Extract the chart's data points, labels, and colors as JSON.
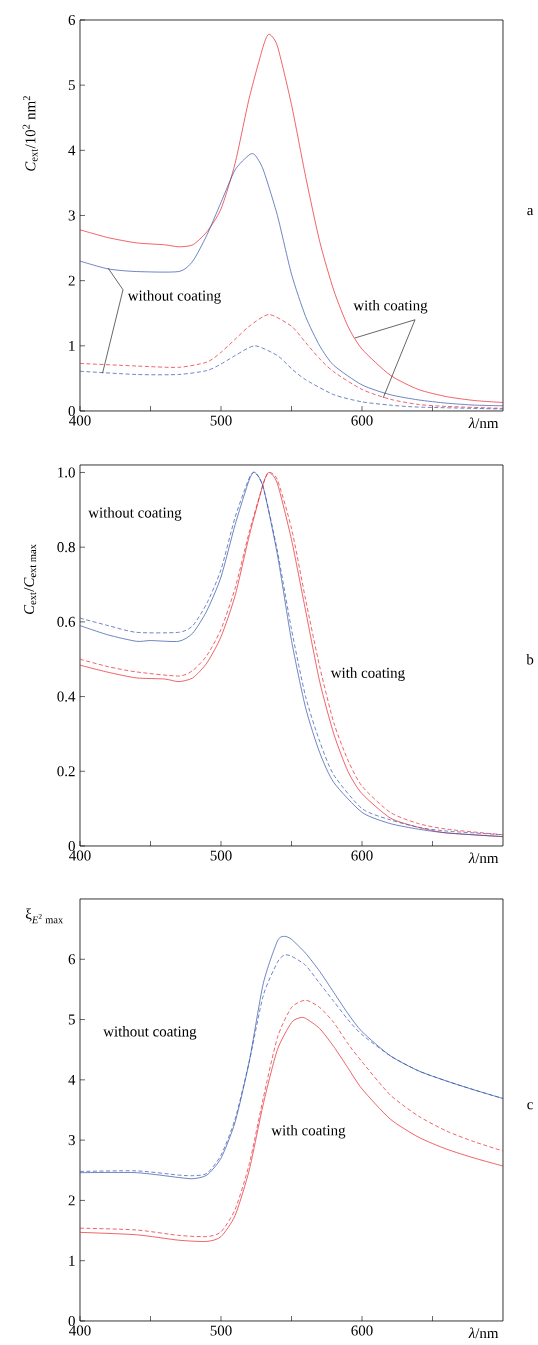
{
  "chart_data": [
    {
      "type": "line",
      "ylabel": "\\textit{C}_{\\text{ext}}\\text{/10}^{\\text{2}}\\text{ nm}^{\\text{2}}",
      "xlabel": "*λ*/nm",
      "xlim": [
        400,
        700
      ],
      "ylim": [
        0,
        6
      ],
      "xticks": [
        400,
        {
          "value": 450,
          "label": null
        },
        500,
        {
          "value": 550,
          "label": null
        },
        600,
        {
          "value": 650,
          "label": null
        }
      ],
      "yticks": [
        0,
        1,
        2,
        3,
        4,
        5,
        6
      ],
      "annotations": [
        {
          "text": "without coating",
          "x": 420,
          "y": 2.19
        },
        {
          "text": "with coating",
          "x": 595,
          "y": 1.12
        },
        "a"
      ],
      "series": [
        {
          "color": "#e8202a",
          "line_style": "solid",
          "x": [
            400,
            420,
            440,
            460,
            470,
            480,
            490,
            500,
            510,
            520,
            530,
            534,
            540,
            550,
            560,
            570,
            580,
            590,
            600,
            620,
            640,
            660,
            680,
            700
          ],
          "values": [
            2.78,
            2.66,
            2.58,
            2.55,
            2.52,
            2.55,
            2.75,
            3.1,
            3.8,
            4.8,
            5.6,
            5.78,
            5.6,
            4.7,
            3.6,
            2.6,
            1.85,
            1.3,
            0.95,
            0.55,
            0.33,
            0.22,
            0.16,
            0.13
          ]
        },
        {
          "color": "#e8202a",
          "line_style": "dashed",
          "x": [
            400,
            440,
            470,
            490,
            500,
            510,
            520,
            534,
            550,
            560,
            570,
            580,
            600,
            620,
            640,
            660,
            700
          ],
          "values": [
            0.73,
            0.69,
            0.67,
            0.75,
            0.9,
            1.1,
            1.3,
            1.48,
            1.3,
            1.05,
            0.8,
            0.6,
            0.33,
            0.18,
            0.1,
            0.07,
            0.04
          ]
        },
        {
          "color": "#3050a8",
          "line_style": "solid",
          "x": [
            400,
            420,
            440,
            470,
            480,
            490,
            500,
            510,
            520,
            524,
            530,
            540,
            550,
            560,
            570,
            580,
            600,
            620,
            640,
            660,
            680,
            700
          ],
          "values": [
            2.3,
            2.18,
            2.14,
            2.14,
            2.3,
            2.7,
            3.2,
            3.7,
            3.93,
            3.93,
            3.7,
            3.0,
            2.1,
            1.45,
            1.0,
            0.7,
            0.4,
            0.25,
            0.17,
            0.12,
            0.09,
            0.08
          ]
        },
        {
          "color": "#3050a8",
          "line_style": "dashed",
          "x": [
            400,
            440,
            470,
            490,
            500,
            510,
            524,
            540,
            550,
            560,
            580,
            600,
            620,
            640,
            700
          ],
          "values": [
            0.61,
            0.56,
            0.56,
            0.62,
            0.72,
            0.85,
            1.0,
            0.85,
            0.65,
            0.48,
            0.25,
            0.14,
            0.09,
            0.06,
            0.03
          ]
        }
      ]
    },
    {
      "type": "line",
      "ylabel": "\\textit{C}_{\\text{ext}}\\text{/}\\textit{C}_{\\text{ext max}}",
      "xlabel": "*λ*/nm",
      "xlim": [
        400,
        700
      ],
      "ylim": [
        0,
        1.02
      ],
      "xticks": [
        400,
        {
          "value": 450,
          "label": null
        },
        500,
        {
          "value": 550,
          "label": null
        },
        600,
        {
          "value": 650,
          "label": null
        }
      ],
      "yticks": [
        0,
        0.2,
        0.4,
        0.6,
        0.8,
        {
          "value": 1,
          "label": "1.0"
        }
      ],
      "annotations": [
        "without coating",
        "with coating",
        "b"
      ],
      "series": [
        {
          "color": "#e8202a",
          "line_style": "solid",
          "x": [
            400,
            420,
            440,
            460,
            470,
            480,
            490,
            500,
            510,
            520,
            530,
            534,
            540,
            550,
            560,
            570,
            580,
            590,
            600,
            620,
            640,
            660,
            700
          ],
          "values": [
            0.484,
            0.465,
            0.45,
            0.447,
            0.44,
            0.45,
            0.49,
            0.56,
            0.67,
            0.83,
            0.97,
            1.0,
            0.97,
            0.82,
            0.63,
            0.44,
            0.3,
            0.2,
            0.14,
            0.075,
            0.05,
            0.035,
            0.025
          ]
        },
        {
          "color": "#e8202a",
          "line_style": "dashed",
          "x": [
            400,
            420,
            440,
            470,
            480,
            490,
            500,
            510,
            520,
            530,
            534,
            540,
            550,
            560,
            570,
            580,
            590,
            600,
            620,
            640,
            660,
            700
          ],
          "values": [
            0.5,
            0.48,
            0.466,
            0.455,
            0.47,
            0.51,
            0.58,
            0.69,
            0.84,
            0.97,
            1.0,
            0.98,
            0.85,
            0.66,
            0.48,
            0.33,
            0.23,
            0.16,
            0.09,
            0.06,
            0.045,
            0.03
          ]
        },
        {
          "color": "#3050a8",
          "line_style": "solid",
          "x": [
            400,
            420,
            440,
            450,
            470,
            480,
            490,
            500,
            510,
            520,
            524,
            530,
            540,
            550,
            560,
            570,
            580,
            600,
            620,
            640,
            660,
            700
          ],
          "values": [
            0.59,
            0.565,
            0.548,
            0.55,
            0.548,
            0.57,
            0.63,
            0.72,
            0.86,
            0.98,
            1.0,
            0.96,
            0.78,
            0.55,
            0.37,
            0.25,
            0.17,
            0.09,
            0.06,
            0.045,
            0.035,
            0.025
          ]
        },
        {
          "color": "#3050a8",
          "line_style": "dashed",
          "x": [
            400,
            420,
            440,
            470,
            480,
            490,
            500,
            510,
            520,
            524,
            530,
            540,
            550,
            560,
            570,
            580,
            600,
            620,
            640,
            660,
            700
          ],
          "values": [
            0.61,
            0.59,
            0.572,
            0.572,
            0.59,
            0.65,
            0.74,
            0.88,
            0.985,
            1.0,
            0.96,
            0.79,
            0.58,
            0.4,
            0.28,
            0.19,
            0.1,
            0.07,
            0.05,
            0.04,
            0.03
          ]
        }
      ]
    },
    {
      "type": "line",
      "ylabel": "\\text{ξ}_{\\textit{E}^{\\text{2}}\\text{ max}}",
      "xlabel": "*λ*/nm",
      "xlim": [
        400,
        700
      ],
      "ylim": [
        0,
        7
      ],
      "xticks": [
        400,
        {
          "value": 450,
          "label": null
        },
        500,
        {
          "value": 550,
          "label": null
        },
        600,
        {
          "value": 650,
          "label": null
        }
      ],
      "yticks": [
        0,
        1,
        2,
        3,
        4,
        5,
        6
      ],
      "annotations": [
        "without coating",
        "with coating",
        "c"
      ],
      "series": [
        {
          "color": "#e8202a",
          "line_style": "solid",
          "x": [
            400,
            440,
            470,
            490,
            500,
            510,
            520,
            530,
            540,
            550,
            556,
            560,
            570,
            580,
            590,
            600,
            620,
            640,
            660,
            680,
            700
          ],
          "values": [
            1.47,
            1.43,
            1.34,
            1.32,
            1.4,
            1.75,
            2.5,
            3.6,
            4.5,
            4.95,
            5.03,
            5.02,
            4.85,
            4.55,
            4.2,
            3.85,
            3.35,
            3.05,
            2.85,
            2.7,
            2.57
          ]
        },
        {
          "color": "#e8202a",
          "line_style": "dashed",
          "x": [
            400,
            440,
            470,
            490,
            500,
            510,
            520,
            530,
            540,
            550,
            560,
            570,
            580,
            590,
            600,
            620,
            640,
            660,
            680,
            700
          ],
          "values": [
            1.54,
            1.51,
            1.42,
            1.4,
            1.48,
            1.85,
            2.6,
            3.7,
            4.7,
            5.2,
            5.32,
            5.2,
            4.95,
            4.6,
            4.3,
            3.75,
            3.4,
            3.15,
            2.97,
            2.82
          ]
        },
        {
          "color": "#3050a8",
          "line_style": "solid",
          "x": [
            400,
            440,
            470,
            480,
            490,
            500,
            510,
            520,
            530,
            540,
            545,
            550,
            560,
            570,
            580,
            590,
            600,
            620,
            640,
            660,
            680,
            700
          ],
          "values": [
            2.46,
            2.46,
            2.38,
            2.36,
            2.42,
            2.7,
            3.3,
            4.3,
            5.6,
            6.3,
            6.38,
            6.33,
            6.1,
            5.8,
            5.45,
            5.1,
            4.8,
            4.4,
            4.15,
            3.98,
            3.83,
            3.69
          ]
        },
        {
          "color": "#3050a8",
          "line_style": "dashed",
          "x": [
            400,
            440,
            470,
            480,
            490,
            500,
            510,
            520,
            530,
            540,
            545,
            550,
            560,
            570,
            580,
            590,
            600,
            620,
            640,
            660,
            680,
            700
          ],
          "values": [
            2.48,
            2.49,
            2.42,
            2.41,
            2.45,
            2.75,
            3.35,
            4.3,
            5.4,
            5.95,
            6.07,
            6.05,
            5.9,
            5.6,
            5.3,
            5.0,
            4.75,
            4.4,
            4.15,
            3.98,
            3.83,
            3.69
          ]
        }
      ]
    }
  ]
}
